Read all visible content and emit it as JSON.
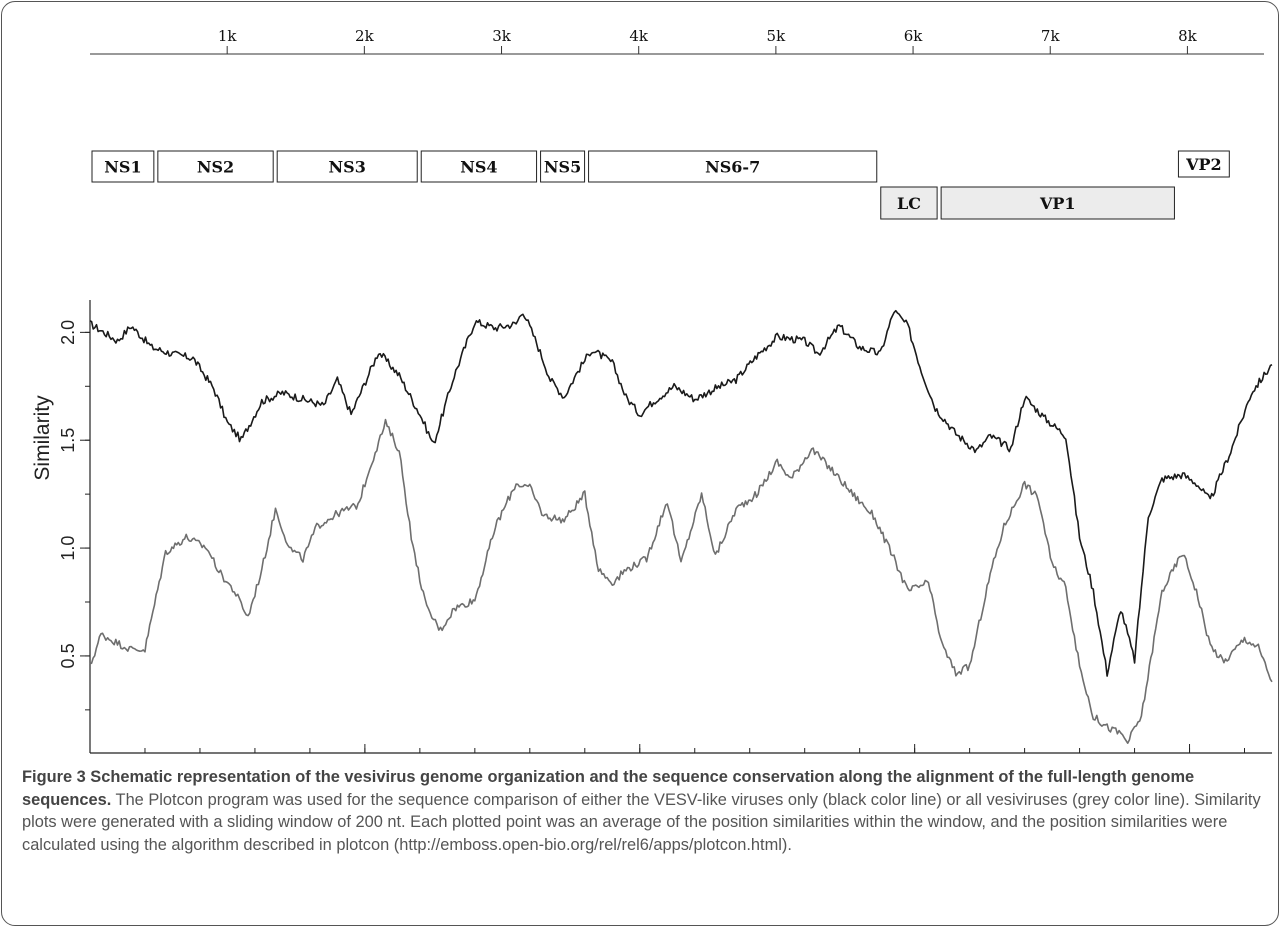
{
  "chart_data": [
    {
      "type": "genome-map",
      "top_axis": {
        "ticks": [
          1000,
          2000,
          3000,
          4000,
          5000,
          6000,
          7000,
          8000
        ],
        "tick_labels": [
          "1k",
          "2k",
          "3k",
          "4k",
          "5k",
          "6k",
          "7k",
          "8k"
        ],
        "range": [
          0,
          8500
        ]
      },
      "orf1": [
        {
          "label": "NS1",
          "start": 0,
          "end": 480
        },
        {
          "label": "NS2",
          "start": 480,
          "end": 1350
        },
        {
          "label": "NS3",
          "start": 1350,
          "end": 2400
        },
        {
          "label": "NS4",
          "start": 2400,
          "end": 3270
        },
        {
          "label": "NS5",
          "start": 3270,
          "end": 3620
        },
        {
          "label": "NS6-7",
          "start": 3620,
          "end": 5750
        }
      ],
      "orf2": [
        {
          "label": "LC",
          "start": 5750,
          "end": 6190
        },
        {
          "label": "VP1",
          "start": 6190,
          "end": 7920
        }
      ],
      "orf3": [
        {
          "label": "VP2",
          "start": 7920,
          "end": 8320
        }
      ]
    },
    {
      "type": "line",
      "ylabel": "Similarity",
      "xlabel": "",
      "xlim": [
        0,
        8600
      ],
      "ylim": [
        0.05,
        2.15
      ],
      "x_ticks": [
        2000,
        4000,
        6000,
        8000
      ],
      "x_tick_labels": [
        "2k",
        "4k",
        "6k",
        "8k"
      ],
      "y_ticks": [
        0.5,
        1.0,
        1.5,
        2.0
      ],
      "y_tick_labels": [
        "0.5",
        "1.0",
        "1.5",
        "2.0"
      ],
      "series": [
        {
          "color": "#1a1a1a",
          "points": [
            [
              0,
              2.04
            ],
            [
              200,
              1.96
            ],
            [
              300,
              2.03
            ],
            [
              450,
              1.93
            ],
            [
              600,
              1.9
            ],
            [
              750,
              1.88
            ],
            [
              900,
              1.74
            ],
            [
              1000,
              1.58
            ],
            [
              1100,
              1.5
            ],
            [
              1250,
              1.68
            ],
            [
              1400,
              1.72
            ],
            [
              1550,
              1.69
            ],
            [
              1700,
              1.66
            ],
            [
              1800,
              1.78
            ],
            [
              1900,
              1.62
            ],
            [
              2100,
              1.91
            ],
            [
              2250,
              1.8
            ],
            [
              2400,
              1.62
            ],
            [
              2500,
              1.48
            ],
            [
              2650,
              1.8
            ],
            [
              2800,
              2.05
            ],
            [
              2950,
              2.02
            ],
            [
              3100,
              2.04
            ],
            [
              3150,
              2.1
            ],
            [
              3250,
              1.95
            ],
            [
              3350,
              1.78
            ],
            [
              3450,
              1.7
            ],
            [
              3550,
              1.82
            ],
            [
              3650,
              1.92
            ],
            [
              3800,
              1.86
            ],
            [
              3900,
              1.7
            ],
            [
              4000,
              1.62
            ],
            [
              4100,
              1.68
            ],
            [
              4250,
              1.75
            ],
            [
              4400,
              1.69
            ],
            [
              4550,
              1.74
            ],
            [
              4700,
              1.78
            ],
            [
              4850,
              1.89
            ],
            [
              5000,
              1.98
            ],
            [
              5200,
              1.96
            ],
            [
              5300,
              1.9
            ],
            [
              5450,
              2.03
            ],
            [
              5600,
              1.93
            ],
            [
              5750,
              1.9
            ],
            [
              5850,
              2.1
            ],
            [
              5950,
              2.03
            ],
            [
              6050,
              1.82
            ],
            [
              6150,
              1.65
            ],
            [
              6300,
              1.53
            ],
            [
              6450,
              1.45
            ],
            [
              6550,
              1.52
            ],
            [
              6700,
              1.46
            ],
            [
              6800,
              1.7
            ],
            [
              6950,
              1.6
            ],
            [
              7100,
              1.52
            ],
            [
              7200,
              1.05
            ],
            [
              7300,
              0.8
            ],
            [
              7400,
              0.42
            ],
            [
              7500,
              0.72
            ],
            [
              7600,
              0.48
            ],
            [
              7700,
              1.15
            ],
            [
              7800,
              1.32
            ],
            [
              7950,
              1.34
            ],
            [
              8050,
              1.3
            ],
            [
              8150,
              1.22
            ],
            [
              8300,
              1.45
            ],
            [
              8450,
              1.72
            ],
            [
              8600,
              1.85
            ]
          ]
        },
        {
          "color": "#6e6e6e",
          "points": [
            [
              0,
              0.45
            ],
            [
              80,
              0.6
            ],
            [
              200,
              0.56
            ],
            [
              300,
              0.53
            ],
            [
              400,
              0.53
            ],
            [
              550,
              0.98
            ],
            [
              700,
              1.05
            ],
            [
              850,
              1.0
            ],
            [
              950,
              0.88
            ],
            [
              1050,
              0.8
            ],
            [
              1150,
              0.68
            ],
            [
              1250,
              0.9
            ],
            [
              1350,
              1.18
            ],
            [
              1450,
              1.0
            ],
            [
              1550,
              0.95
            ],
            [
              1650,
              1.1
            ],
            [
              1800,
              1.16
            ],
            [
              1950,
              1.2
            ],
            [
              2050,
              1.4
            ],
            [
              2150,
              1.58
            ],
            [
              2250,
              1.45
            ],
            [
              2350,
              1.0
            ],
            [
              2450,
              0.72
            ],
            [
              2550,
              0.62
            ],
            [
              2650,
              0.72
            ],
            [
              2800,
              0.76
            ],
            [
              2950,
              1.1
            ],
            [
              3100,
              1.3
            ],
            [
              3200,
              1.28
            ],
            [
              3300,
              1.15
            ],
            [
              3450,
              1.13
            ],
            [
              3600,
              1.25
            ],
            [
              3700,
              0.9
            ],
            [
              3800,
              0.84
            ],
            [
              3900,
              0.9
            ],
            [
              4050,
              0.95
            ],
            [
              4200,
              1.22
            ],
            [
              4300,
              0.93
            ],
            [
              4450,
              1.25
            ],
            [
              4550,
              0.96
            ],
            [
              4700,
              1.18
            ],
            [
              4850,
              1.25
            ],
            [
              5000,
              1.4
            ],
            [
              5100,
              1.32
            ],
            [
              5250,
              1.46
            ],
            [
              5400,
              1.36
            ],
            [
              5550,
              1.25
            ],
            [
              5700,
              1.15
            ],
            [
              5850,
              0.95
            ],
            [
              5950,
              0.8
            ],
            [
              6100,
              0.84
            ],
            [
              6200,
              0.55
            ],
            [
              6300,
              0.42
            ],
            [
              6400,
              0.45
            ],
            [
              6550,
              0.88
            ],
            [
              6650,
              1.1
            ],
            [
              6800,
              1.3
            ],
            [
              6900,
              1.23
            ],
            [
              7000,
              0.92
            ],
            [
              7100,
              0.82
            ],
            [
              7200,
              0.45
            ],
            [
              7300,
              0.22
            ],
            [
              7400,
              0.17
            ],
            [
              7500,
              0.14
            ],
            [
              7550,
              0.1
            ],
            [
              7650,
              0.22
            ],
            [
              7800,
              0.8
            ],
            [
              7950,
              0.98
            ],
            [
              8050,
              0.8
            ],
            [
              8150,
              0.55
            ],
            [
              8250,
              0.47
            ],
            [
              8400,
              0.58
            ],
            [
              8500,
              0.54
            ],
            [
              8600,
              0.38
            ]
          ]
        }
      ]
    }
  ],
  "caption": {
    "bold": "Figure 3 Schematic representation of the vesivirus genome organization and the sequence conservation along the alignment of the full-length genome sequences.",
    "text": " The Plotcon program was used for the sequence comparison of either the VESV-like viruses only (black color line) or all vesiviruses (grey color line). Similarity plots were generated with a sliding window of 200 nt. Each plotted point was an average of the position similarities within the window, and the position similarities were calculated using the algorithm described in plotcon (http://emboss.open-bio.org/rel/rel6/apps/plotcon.html)."
  }
}
